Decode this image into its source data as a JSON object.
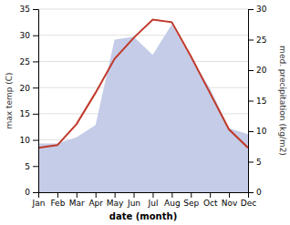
{
  "chart_data": {
    "type": "line",
    "xlabel": "date (month)",
    "ylabel": "max temp (C)",
    "y2label": "med. precipitation (kg/m2)",
    "categories": [
      "Jan",
      "Feb",
      "Mar",
      "Apr",
      "May",
      "Jun",
      "Jul",
      "Aug",
      "Sep",
      "Oct",
      "Nov",
      "Dec"
    ],
    "series": [
      {
        "type": "area",
        "axis": "y2",
        "color": "#c5cce8",
        "values": [
          8.0,
          8.0,
          9.0,
          11.0,
          25.0,
          25.5,
          22.5,
          27.5,
          22.0,
          17.0,
          10.5,
          9.5
        ]
      },
      {
        "type": "line",
        "color": "#c0392b",
        "values": [
          8.5,
          9.0,
          13.0,
          19.0,
          25.5,
          29.5,
          33.0,
          32.5,
          26.0,
          19.0,
          12.0,
          8.5
        ]
      }
    ],
    "ylim": [
      0,
      35
    ],
    "yticks": [
      0,
      5,
      10,
      15,
      20,
      25,
      30,
      35
    ],
    "y2lim": [
      0,
      30
    ],
    "y2ticks": [
      0,
      5,
      10,
      15,
      20,
      25,
      30
    ],
    "grid": true
  }
}
